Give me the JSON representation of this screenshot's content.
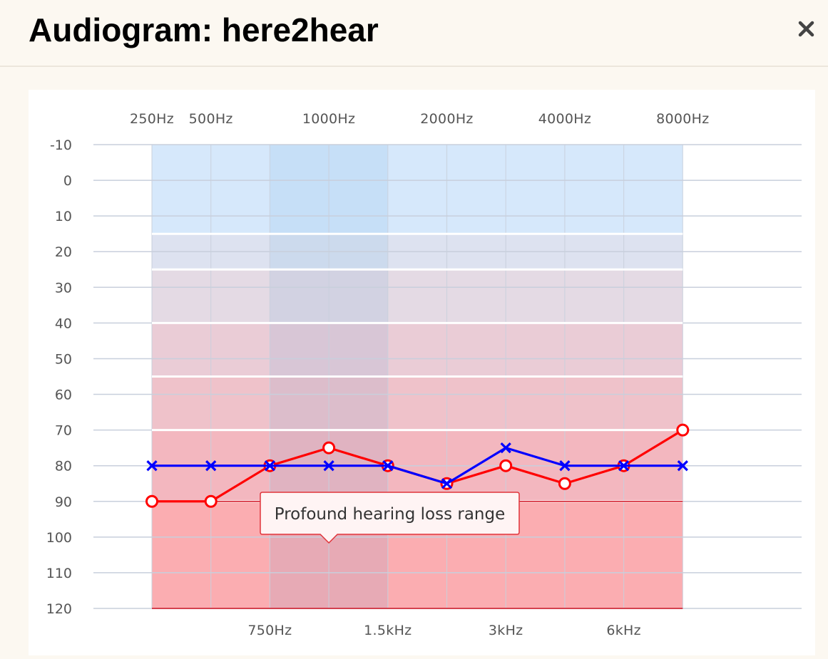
{
  "header": {
    "title": "Audiogram: here2hear"
  },
  "chart_data": {
    "type": "line",
    "x_axis_top": {
      "categories": [
        "250Hz",
        "500Hz",
        "1000Hz",
        "2000Hz",
        "4000Hz",
        "8000Hz"
      ]
    },
    "x_axis_bottom": {
      "categories": [
        "750Hz",
        "1.5kHz",
        "3kHz",
        "6kHz"
      ]
    },
    "x_positions": [
      "250Hz",
      "500Hz",
      "750Hz",
      "1000Hz",
      "1.5kHz",
      "2000Hz",
      "3kHz",
      "4000Hz",
      "6kHz",
      "8000Hz"
    ],
    "y_axis": {
      "ticks": [
        "-10",
        "0",
        "10",
        "20",
        "30",
        "40",
        "50",
        "60",
        "70",
        "80",
        "90",
        "100",
        "110",
        "120"
      ],
      "ylim": [
        -10,
        120
      ],
      "reversed": true
    },
    "series": [
      {
        "color": "#ff0000",
        "marker": "circle",
        "values": [
          90,
          90,
          80,
          75,
          80,
          85,
          80,
          85,
          80,
          70
        ]
      },
      {
        "color": "#0000ff",
        "marker": "x",
        "values": [
          80,
          80,
          80,
          80,
          80,
          85,
          75,
          80,
          80,
          80
        ]
      }
    ],
    "bands": [
      {
        "from": -10,
        "to": 15,
        "color": "#d6e8fb"
      },
      {
        "from": 15,
        "to": 25,
        "color": "#dde2f0"
      },
      {
        "from": 25,
        "to": 40,
        "color": "#e4dae4"
      },
      {
        "from": 40,
        "to": 55,
        "color": "#eaccd6"
      },
      {
        "from": 55,
        "to": 70,
        "color": "#efc2ca"
      },
      {
        "from": 70,
        "to": 90,
        "color": "#f3b7bf"
      },
      {
        "from": 90,
        "to": 120,
        "color": "#fbadb1"
      }
    ],
    "highlight_column": {
      "from": "750Hz",
      "to": "1.5kHz"
    },
    "tooltip": {
      "text": "Profound hearing loss range",
      "anchor_x": "1000Hz"
    },
    "grid": true
  }
}
